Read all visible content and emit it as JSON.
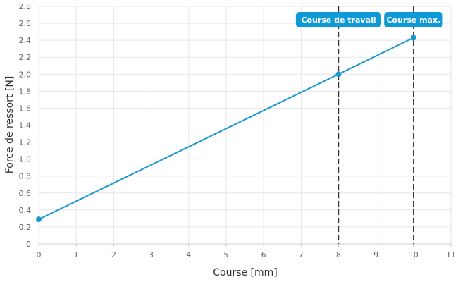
{
  "chart_data": {
    "type": "line",
    "title": "",
    "xlabel": "Course [mm]",
    "ylabel": "Force de ressort [N]",
    "xlim": [
      0,
      11
    ],
    "ylim": [
      0,
      2.8
    ],
    "x_ticks": [
      "0",
      "1",
      "2",
      "3",
      "4",
      "5",
      "6",
      "7",
      "8",
      "9",
      "10",
      "11"
    ],
    "y_ticks": [
      "0",
      "0.2",
      "0.4",
      "0.6",
      "0.8",
      "1.0",
      "1.2",
      "1.4",
      "1.6",
      "1.8",
      "2.0",
      "2.2",
      "2.4",
      "2.6",
      "2.8"
    ],
    "grid": true,
    "series": [
      {
        "x": [
          0,
          8,
          10
        ],
        "y": [
          0.29,
          2.0,
          2.43
        ],
        "color": "#1a97d2"
      }
    ],
    "markers": [
      {
        "x": 8,
        "label": "Course de travail"
      },
      {
        "x": 10,
        "label": "Course max."
      }
    ],
    "colors": {
      "line": "#1a97d2",
      "label_bg": "#0e9ad7",
      "marker_line": "#333333",
      "grid": "#e6e6e6"
    }
  }
}
